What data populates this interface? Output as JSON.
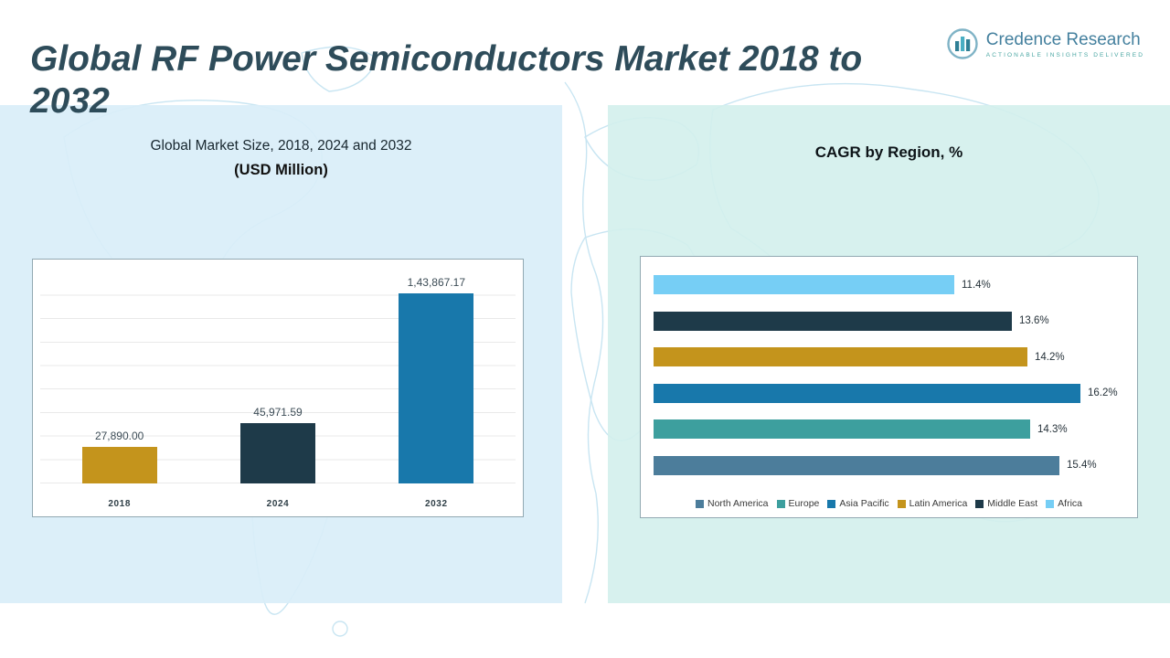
{
  "header": {
    "title": "Global RF Power Semiconductors Market 2018 to 2032",
    "logo": {
      "name": "Credence Research",
      "tagline": "Actionable Insights Delivered"
    }
  },
  "colors": {
    "gold": "#c4941c",
    "navy": "#1e3a49",
    "blue": "#1878ab",
    "teal": "#3d9f9e",
    "steel": "#4c7d9b",
    "sky": "#76cef5",
    "panel_left_bg": "#d9eef9",
    "panel_right_bg": "#d3f0ec",
    "map_line": "#c8e5f2"
  },
  "chart_data": [
    {
      "type": "bar",
      "orientation": "vertical",
      "title": "Global Market Size, 2018, 2024 and 2032",
      "subtitle": "(USD Million)",
      "categories": [
        "2018",
        "2024",
        "2032"
      ],
      "values": [
        27890.0,
        45971.59,
        143867.17
      ],
      "value_labels": [
        "27,890.00",
        "45,971.59",
        "1,43,867.17"
      ],
      "bar_colors": [
        "#c4941c",
        "#1e3a49",
        "#1878ab"
      ],
      "ylim": [
        0,
        160000
      ],
      "grid": true,
      "legend_position": "none"
    },
    {
      "type": "bar",
      "orientation": "horizontal",
      "title": "CAGR by Region, %",
      "categories": [
        "Africa",
        "Middle East",
        "Latin America",
        "Asia Pacific",
        "Europe",
        "North America"
      ],
      "values": [
        11.4,
        13.6,
        14.2,
        16.2,
        14.3,
        15.4
      ],
      "value_labels": [
        "11.4%",
        "13.6%",
        "14.2%",
        "16.2%",
        "14.3%",
        "15.4%"
      ],
      "bar_colors": [
        "#76cef5",
        "#1e3a49",
        "#c4941c",
        "#1878ab",
        "#3d9f9e",
        "#4c7d9b"
      ],
      "xlim": [
        0,
        17
      ],
      "grid": false,
      "legend_position": "bottom",
      "legend": [
        {
          "label": "North America",
          "color": "#4c7d9b"
        },
        {
          "label": "Europe",
          "color": "#3d9f9e"
        },
        {
          "label": "Asia Pacific",
          "color": "#1878ab"
        },
        {
          "label": "Latin America",
          "color": "#c4941c"
        },
        {
          "label": "Middle East",
          "color": "#1e3a49"
        },
        {
          "label": "Africa",
          "color": "#76cef5"
        }
      ]
    }
  ]
}
